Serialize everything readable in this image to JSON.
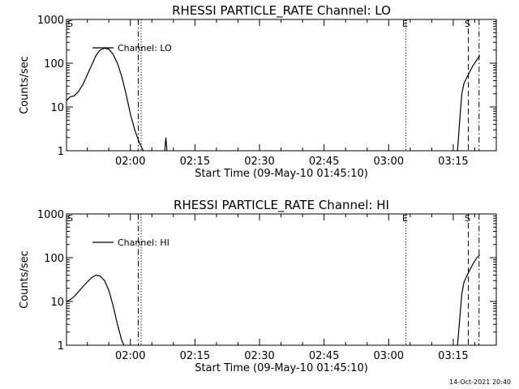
{
  "chart_data": [
    {
      "type": "line",
      "title": "RHESSI PARTICLE_RATE Channel: LO",
      "xlabel": "Start Time (09-May-10 01:45:10)",
      "ylabel": "Counts/sec",
      "y_scale": "log",
      "ylim": [
        1,
        1000
      ],
      "y_ticks": [
        {
          "value": 1,
          "label": "1"
        },
        {
          "value": 10,
          "label": "10"
        },
        {
          "value": 100,
          "label": "100"
        },
        {
          "value": 1000,
          "label": "1000"
        }
      ],
      "xlim": [
        "01:45:10",
        "03:25:00"
      ],
      "x_ticks": [
        "02:00",
        "02:15",
        "02:30",
        "02:45",
        "03:00",
        "03:15"
      ],
      "legend": {
        "position": "top-left",
        "label": "Channel: LO"
      },
      "markers": [
        {
          "time": "02:01:50",
          "style": "dash-dot",
          "label": ""
        },
        {
          "time": "02:02:30",
          "style": "dotted",
          "label": ""
        },
        {
          "time": "03:04:00",
          "style": "dotted",
          "label": "E"
        },
        {
          "time": "03:18:30",
          "style": "dashed",
          "label": "S"
        },
        {
          "time": "03:21:00",
          "style": "dash-dot",
          "label": ""
        }
      ],
      "corner_label": "S",
      "series": [
        {
          "name": "Channel: LO",
          "segments": [
            [
              [
                "01:45:10",
                14
              ],
              [
                "01:46:00",
                17
              ],
              [
                "01:47:00",
                18
              ],
              [
                "01:48:00",
                23
              ],
              [
                "01:49:00",
                33
              ],
              [
                "01:50:00",
                55
              ],
              [
                "01:51:00",
                90
              ],
              [
                "01:52:00",
                150
              ],
              [
                "01:53:00",
                200
              ],
              [
                "01:54:00",
                220
              ],
              [
                "01:55:00",
                210
              ],
              [
                "01:56:00",
                160
              ],
              [
                "01:57:00",
                100
              ],
              [
                "01:58:00",
                50
              ],
              [
                "01:59:00",
                20
              ],
              [
                "02:00:00",
                7
              ],
              [
                "02:01:00",
                3
              ],
              [
                "02:02:00",
                1.6
              ],
              [
                "02:03:00",
                1
              ]
            ],
            [
              [
                "02:08:00",
                1
              ],
              [
                "02:08:15",
                2
              ],
              [
                "02:08:30",
                1
              ]
            ],
            [
              [
                "03:16:00",
                1
              ],
              [
                "03:16:30",
                5
              ],
              [
                "03:17:00",
                20
              ],
              [
                "03:17:30",
                35
              ],
              [
                "03:18:30",
                55
              ],
              [
                "03:19:30",
                85
              ],
              [
                "03:20:30",
                120
              ],
              [
                "03:21:10",
                150
              ]
            ]
          ]
        }
      ]
    },
    {
      "type": "line",
      "title": "RHESSI PARTICLE_RATE Channel: HI",
      "xlabel": "Start Time (09-May-10 01:45:10)",
      "ylabel": "Counts/sec",
      "y_scale": "log",
      "ylim": [
        1,
        1000
      ],
      "y_ticks": [
        {
          "value": 1,
          "label": "1"
        },
        {
          "value": 10,
          "label": "10"
        },
        {
          "value": 100,
          "label": "100"
        },
        {
          "value": 1000,
          "label": "1000"
        }
      ],
      "xlim": [
        "01:45:10",
        "03:25:00"
      ],
      "x_ticks": [
        "02:00",
        "02:15",
        "02:30",
        "02:45",
        "03:00",
        "03:15"
      ],
      "legend": {
        "position": "top-left",
        "label": "Channel: HI"
      },
      "markers": [
        {
          "time": "02:01:50",
          "style": "dash-dot",
          "label": ""
        },
        {
          "time": "02:02:30",
          "style": "dotted",
          "label": ""
        },
        {
          "time": "03:04:00",
          "style": "dotted",
          "label": "E"
        },
        {
          "time": "03:18:30",
          "style": "dashed",
          "label": "S"
        },
        {
          "time": "03:21:00",
          "style": "dash-dot",
          "label": ""
        }
      ],
      "corner_label": "S",
      "series": [
        {
          "name": "Channel: HI",
          "segments": [
            [
              [
                "01:45:10",
                10
              ],
              [
                "01:46:00",
                11
              ],
              [
                "01:47:00",
                13
              ],
              [
                "01:48:00",
                17
              ],
              [
                "01:49:00",
                22
              ],
              [
                "01:50:00",
                28
              ],
              [
                "01:51:00",
                35
              ],
              [
                "01:52:00",
                40
              ],
              [
                "01:53:00",
                38
              ],
              [
                "01:54:00",
                30
              ],
              [
                "01:55:00",
                18
              ],
              [
                "01:56:00",
                8
              ],
              [
                "01:57:00",
                3
              ],
              [
                "01:58:00",
                1.3
              ],
              [
                "01:58:30",
                1
              ]
            ],
            [
              [
                "03:16:00",
                1
              ],
              [
                "03:16:30",
                4
              ],
              [
                "03:17:00",
                15
              ],
              [
                "03:17:30",
                28
              ],
              [
                "03:18:30",
                45
              ],
              [
                "03:19:30",
                70
              ],
              [
                "03:20:30",
                100
              ],
              [
                "03:21:10",
                115
              ]
            ]
          ]
        }
      ]
    }
  ],
  "footer": {
    "timestamp": "14-Oct-2021 20:40"
  }
}
